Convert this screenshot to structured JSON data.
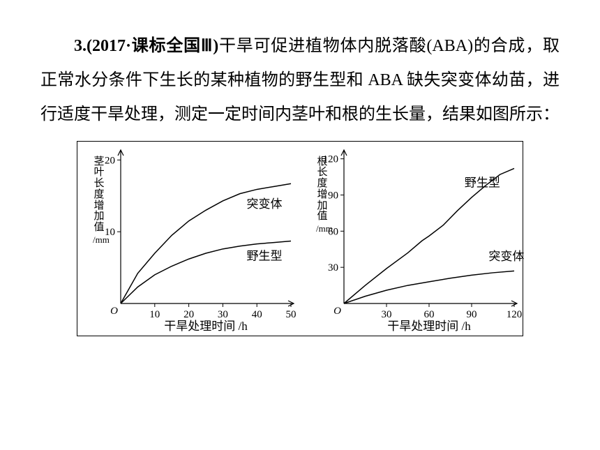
{
  "question": {
    "prefix_bold": "3.(2017·课标全国Ⅲ)",
    "body1": "干旱可促进植物体内脱落酸(ABA)的合成，取正常水分条件下生长的某种植物的野生型和 ABA 缺失突变体幼苗，进行适度干旱处理，测定一定时间内茎叶和根的生长量，结果如图所示："
  },
  "charts": {
    "left": {
      "type": "line",
      "ylabel_chars": [
        "茎",
        "叶",
        "长",
        "度",
        "增",
        "加",
        "值"
      ],
      "ylabel_unit": "/mm",
      "xlabel": "干旱处理时间 /h",
      "xlim": [
        0,
        50
      ],
      "ylim": [
        0,
        21
      ],
      "xticks": [
        10,
        20,
        30,
        40,
        50
      ],
      "yticks": [
        10,
        20
      ],
      "axis_color": "#000000",
      "curve_color": "#000000",
      "background": "#ffffff",
      "curve_width": 1.5,
      "series": [
        {
          "label": "突变体",
          "label_x": 37,
          "label_y": 13.3,
          "points": [
            [
              0,
              0
            ],
            [
              5,
              4.2
            ],
            [
              10,
              7.0
            ],
            [
              15,
              9.5
            ],
            [
              20,
              11.5
            ],
            [
              25,
              13.0
            ],
            [
              30,
              14.3
            ],
            [
              35,
              15.3
            ],
            [
              40,
              15.9
            ],
            [
              45,
              16.3
            ],
            [
              50,
              16.7
            ]
          ]
        },
        {
          "label": "野生型",
          "label_x": 37,
          "label_y": 6.1,
          "points": [
            [
              0,
              0
            ],
            [
              5,
              2.3
            ],
            [
              10,
              4.0
            ],
            [
              15,
              5.2
            ],
            [
              20,
              6.2
            ],
            [
              25,
              7.0
            ],
            [
              30,
              7.6
            ],
            [
              35,
              8.0
            ],
            [
              40,
              8.3
            ],
            [
              45,
              8.5
            ],
            [
              50,
              8.7
            ]
          ]
        }
      ]
    },
    "right": {
      "type": "line",
      "ylabel_chars": [
        "根",
        "长",
        "度",
        "增",
        "加",
        "值"
      ],
      "ylabel_unit": "/mm",
      "xlabel": "干旱处理时间 /h",
      "xlim": [
        0,
        120
      ],
      "ylim": [
        0,
        125
      ],
      "xticks": [
        30,
        60,
        90,
        120
      ],
      "yticks": [
        30,
        60,
        90,
        120
      ],
      "axis_color": "#000000",
      "curve_color": "#000000",
      "background": "#ffffff",
      "curve_width": 1.5,
      "series": [
        {
          "label": "野生型",
          "label_x": 85,
          "label_y": 97,
          "points": [
            [
              0,
              0
            ],
            [
              15,
              15
            ],
            [
              30,
              29
            ],
            [
              45,
              42
            ],
            [
              55,
              52
            ],
            [
              60,
              56
            ],
            [
              70,
              65
            ],
            [
              80,
              77
            ],
            [
              90,
              88
            ],
            [
              100,
              98
            ],
            [
              110,
              107
            ],
            [
              120,
              112
            ]
          ]
        },
        {
          "label": "突变体",
          "label_x": 102,
          "label_y": 36,
          "points": [
            [
              0,
              0
            ],
            [
              15,
              6
            ],
            [
              30,
              11
            ],
            [
              45,
              15
            ],
            [
              60,
              18
            ],
            [
              75,
              21
            ],
            [
              90,
              23.5
            ],
            [
              105,
              25.5
            ],
            [
              120,
              27
            ]
          ]
        }
      ]
    }
  }
}
